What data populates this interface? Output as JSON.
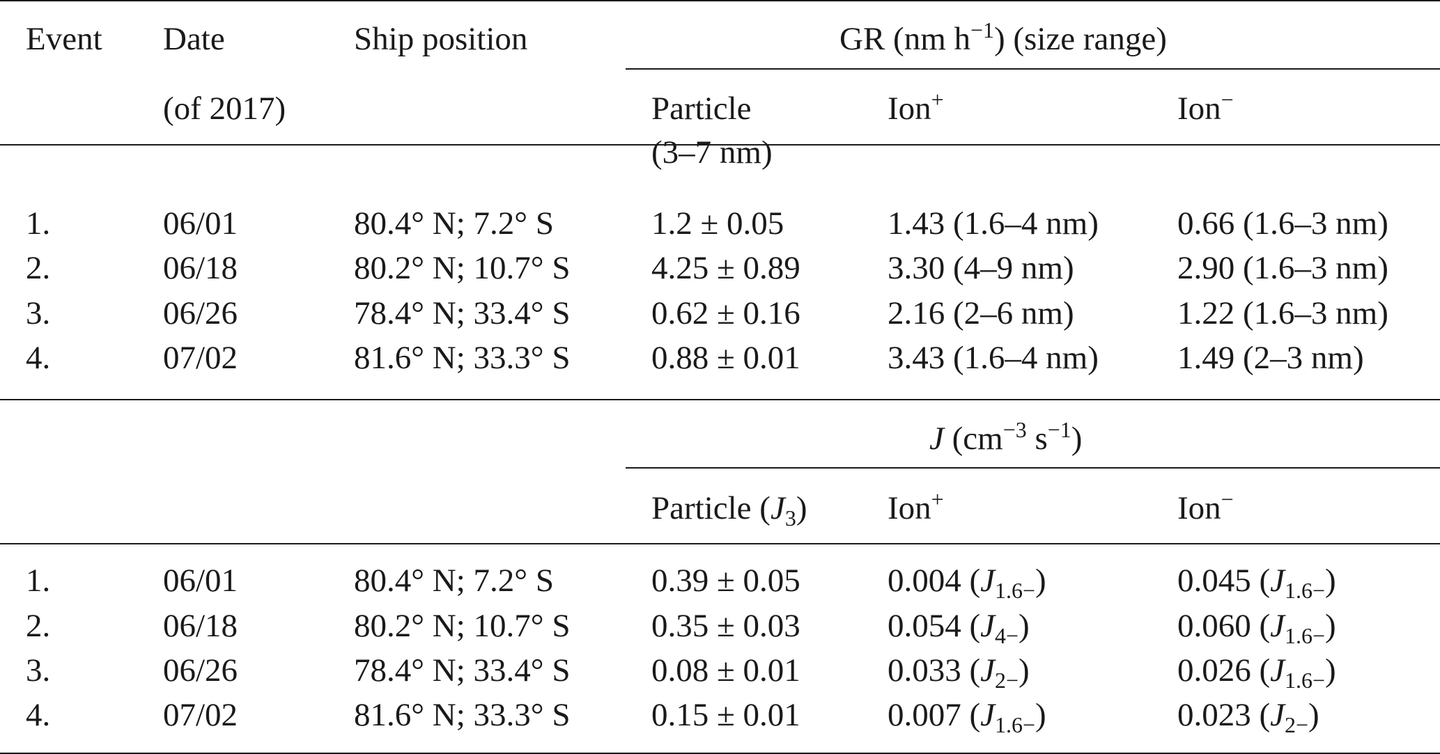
{
  "header": {
    "event": "Event",
    "date": "Date",
    "date_sub": "(of 2017)",
    "ship_position": "Ship position",
    "gr_title_pre": "GR (nm h",
    "gr_title_sup": "−1",
    "gr_title_post": ") (size range)",
    "particle": "Particle",
    "particle_range": "(3–7 nm)",
    "ion_pos": "Ion",
    "ion_pos_sup": "+",
    "ion_neg": "Ion",
    "ion_neg_sup": "−"
  },
  "gr_rows": [
    {
      "event": "1.",
      "date": "06/01",
      "position": "80.4° N; 7.2° S",
      "particle": "1.2 ± 0.05",
      "ion_pos": "1.43 (1.6–4 nm)",
      "ion_neg": "0.66 (1.6–3 nm)"
    },
    {
      "event": "2.",
      "date": "06/18",
      "position": "80.2° N; 10.7° S",
      "particle": "4.25 ± 0.89",
      "ion_pos": "3.30 (4–9 nm)",
      "ion_neg": "2.90 (1.6–3 nm)"
    },
    {
      "event": "3.",
      "date": "06/26",
      "position": "78.4° N; 33.4° S",
      "particle": "0.62 ± 0.16",
      "ion_pos": "2.16 (2–6 nm)",
      "ion_neg": "1.22 (1.6–3 nm)"
    },
    {
      "event": "4.",
      "date": "07/02",
      "position": "81.6° N; 33.3° S",
      "particle": "0.88 ± 0.01",
      "ion_pos": "3.43 (1.6–4 nm)",
      "ion_neg": "1.49 (2–3 nm)"
    }
  ],
  "j_header": {
    "j_symbol": "J",
    "j_open": " (cm",
    "j_sup1": "−3",
    "j_mid": " s",
    "j_sup2": "−1",
    "j_close": ")",
    "particle_pre": "Particle (",
    "particle_j": "J",
    "particle_sub": "3",
    "particle_post": ")",
    "ion_pos": "Ion",
    "ion_pos_sup": "+",
    "ion_neg": "Ion",
    "ion_neg_sup": "−"
  },
  "j_rows": [
    {
      "event": "1.",
      "date": "06/01",
      "position": "80.4° N; 7.2° S",
      "particle": "0.39 ± 0.05",
      "ion_pos_val": "0.004 (",
      "ion_pos_sub": "1.6−",
      "ion_neg_val": "0.045 (",
      "ion_neg_sub": "1.6−"
    },
    {
      "event": "2.",
      "date": "06/18",
      "position": "80.2° N; 10.7° S",
      "particle": "0.35 ± 0.03",
      "ion_pos_val": "0.054 (",
      "ion_pos_sub": "4−",
      "ion_neg_val": "0.060 (",
      "ion_neg_sub": "1.6−"
    },
    {
      "event": "3.",
      "date": "06/26",
      "position": "78.4° N; 33.4° S",
      "particle": "0.08 ± 0.01",
      "ion_pos_val": "0.033 (",
      "ion_pos_sub": "2−",
      "ion_neg_val": "0.026 (",
      "ion_neg_sub": "1.6−"
    },
    {
      "event": "4.",
      "date": "07/02",
      "position": "81.6° N; 33.3° S",
      "particle": "0.15 ± 0.01",
      "ion_pos_val": "0.007 (",
      "ion_pos_sub": "1.6−",
      "ion_neg_val": "0.023 (",
      "ion_neg_sub": "2−"
    }
  ],
  "j_symbol": "J",
  "close_paren": ")"
}
